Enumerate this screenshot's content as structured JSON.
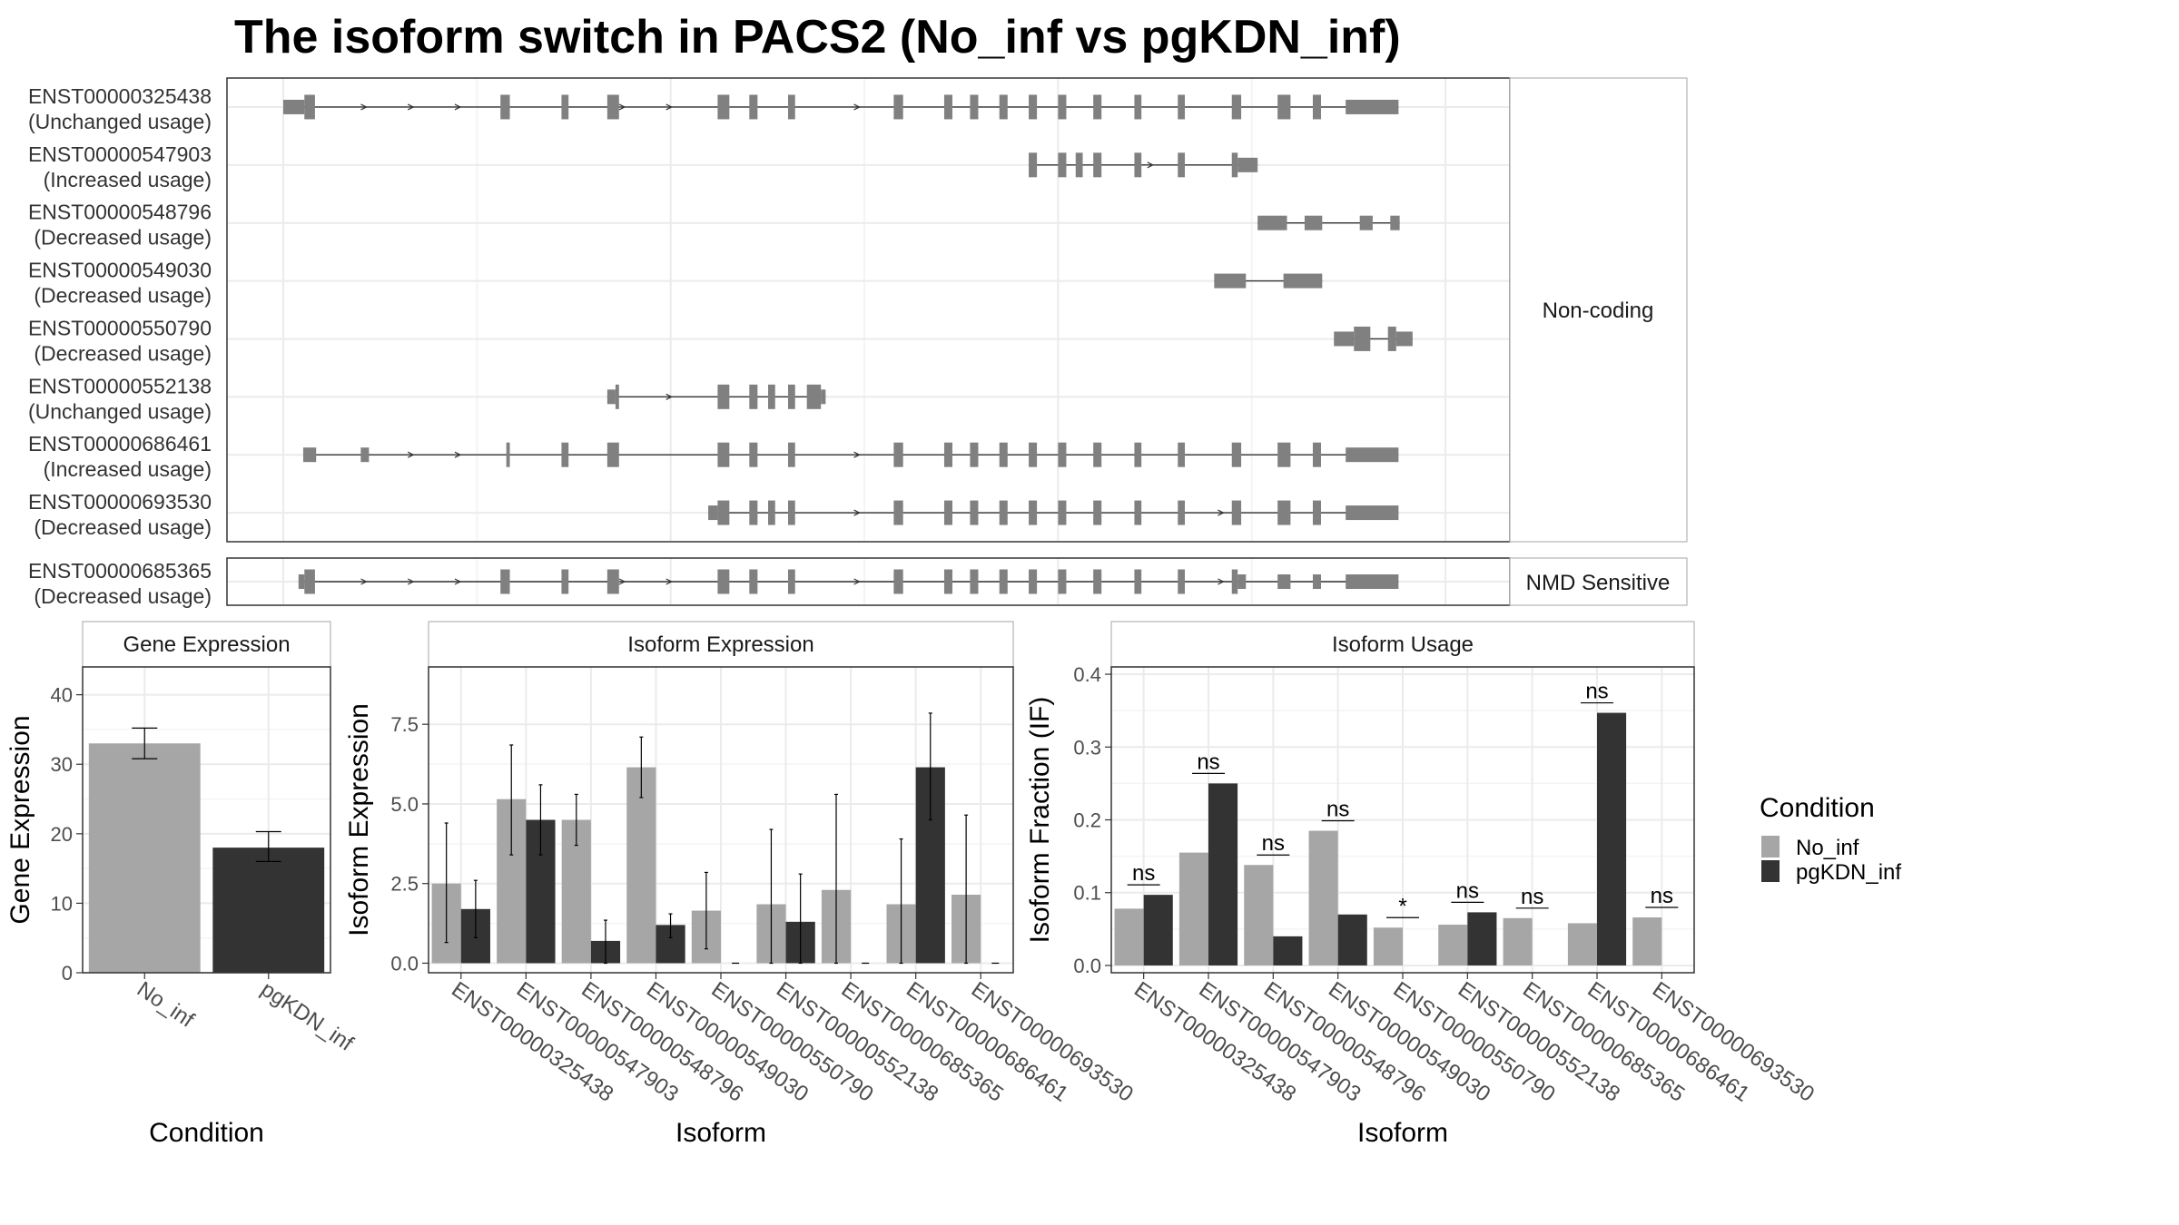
{
  "title": "The isoform switch in PACS2 (No_inf vs pgKDN_inf)",
  "colors": {
    "No_inf": "#a6a6a6",
    "pgKDN_inf": "#333333",
    "exon": "#808080",
    "grid": "#ebebeb",
    "panel_border": "#333333"
  },
  "chart_data": [
    {
      "type": "gene-structure",
      "panel": "Non-coding",
      "genomic_range": [
        0,
        1000
      ],
      "transcripts": [
        {
          "id": "ENST00000325438",
          "status": "(Unchanged usage)",
          "exons": [
            [
              0,
              18,
              "u"
            ],
            [
              18,
              27,
              "c"
            ],
            [
              185,
              193,
              "c"
            ],
            [
              237,
              243,
              "c"
            ],
            [
              276,
              286,
              "c"
            ],
            [
              370,
              380,
              "c"
            ],
            [
              397,
              404,
              "c"
            ],
            [
              430,
              436,
              "c"
            ],
            [
              520,
              528,
              "c"
            ],
            [
              563,
              570,
              "c"
            ],
            [
              585,
              592,
              "c"
            ],
            [
              610,
              617,
              "c"
            ],
            [
              635,
              642,
              "c"
            ],
            [
              660,
              667,
              "c"
            ],
            [
              690,
              697,
              "c"
            ],
            [
              725,
              731,
              "c"
            ],
            [
              762,
              768,
              "c"
            ],
            [
              808,
              816,
              "c"
            ],
            [
              847,
              858,
              "c"
            ],
            [
              877,
              884,
              "c"
            ],
            [
              905,
              913,
              "u"
            ],
            [
              913,
              950,
              "u"
            ]
          ],
          "arrows": [
            70,
            110,
            150,
            290,
            330,
            490
          ]
        },
        {
          "id": "ENST00000547903",
          "status": "(Increased usage)",
          "exons": [
            [
              635,
              642,
              "c"
            ],
            [
              660,
              667,
              "c"
            ],
            [
              675,
              681,
              "c"
            ],
            [
              690,
              697,
              "c"
            ],
            [
              725,
              731,
              "c"
            ],
            [
              762,
              768,
              "c"
            ],
            [
              808,
              813,
              "c"
            ],
            [
              813,
              830,
              "u"
            ]
          ],
          "arrows": [
            740
          ]
        },
        {
          "id": "ENST00000548796",
          "status": "(Decreased usage)",
          "exons": [
            [
              830,
              855,
              "u"
            ],
            [
              870,
              885,
              "u"
            ],
            [
              917,
              928,
              "u"
            ],
            [
              943,
              951,
              "u"
            ]
          ],
          "arrows": []
        },
        {
          "id": "ENST00000549030",
          "status": "(Decreased usage)",
          "exons": [
            [
              793,
              820,
              "u"
            ],
            [
              852,
              885,
              "u"
            ]
          ],
          "arrows": []
        },
        {
          "id": "ENST00000550790",
          "status": "(Decreased usage)",
          "exons": [
            [
              895,
              912,
              "u"
            ],
            [
              912,
              926,
              "c"
            ],
            [
              941,
              948,
              "c"
            ],
            [
              948,
              962,
              "u"
            ]
          ],
          "arrows": []
        },
        {
          "id": "ENST00000552138",
          "status": "(Unchanged usage)",
          "exons": [
            [
              276,
              283,
              "u"
            ],
            [
              283,
              286,
              "c"
            ],
            [
              370,
              380,
              "c"
            ],
            [
              397,
              404,
              "c"
            ],
            [
              413,
              419,
              "c"
            ],
            [
              430,
              436,
              "c"
            ],
            [
              446,
              458,
              "c"
            ],
            [
              458,
              462,
              "u"
            ]
          ],
          "arrows": [
            330
          ]
        },
        {
          "id": "ENST00000686461",
          "status": "(Increased usage)",
          "exons": [
            [
              17,
              28,
              "u"
            ],
            [
              66,
              73,
              "u"
            ],
            [
              190,
              193,
              "c"
            ],
            [
              237,
              243,
              "c"
            ],
            [
              276,
              286,
              "c"
            ],
            [
              370,
              380,
              "c"
            ],
            [
              397,
              404,
              "c"
            ],
            [
              430,
              436,
              "c"
            ],
            [
              520,
              528,
              "c"
            ],
            [
              563,
              570,
              "c"
            ],
            [
              585,
              592,
              "c"
            ],
            [
              610,
              617,
              "c"
            ],
            [
              635,
              642,
              "c"
            ],
            [
              660,
              667,
              "c"
            ],
            [
              690,
              697,
              "c"
            ],
            [
              725,
              731,
              "c"
            ],
            [
              762,
              768,
              "c"
            ],
            [
              808,
              816,
              "c"
            ],
            [
              847,
              858,
              "c"
            ],
            [
              877,
              884,
              "c"
            ],
            [
              905,
              913,
              "u"
            ],
            [
              913,
              950,
              "u"
            ]
          ],
          "arrows": [
            110,
            150,
            490
          ]
        },
        {
          "id": "ENST00000693530",
          "status": "(Decreased usage)",
          "exons": [
            [
              362,
              370,
              "u"
            ],
            [
              370,
              380,
              "c"
            ],
            [
              397,
              404,
              "c"
            ],
            [
              413,
              419,
              "c"
            ],
            [
              430,
              436,
              "c"
            ],
            [
              520,
              528,
              "c"
            ],
            [
              563,
              570,
              "c"
            ],
            [
              585,
              592,
              "c"
            ],
            [
              610,
              617,
              "c"
            ],
            [
              635,
              642,
              "c"
            ],
            [
              660,
              667,
              "c"
            ],
            [
              690,
              697,
              "c"
            ],
            [
              725,
              731,
              "c"
            ],
            [
              762,
              768,
              "c"
            ],
            [
              808,
              816,
              "c"
            ],
            [
              847,
              858,
              "c"
            ],
            [
              877,
              884,
              "c"
            ],
            [
              905,
              913,
              "u"
            ],
            [
              913,
              950,
              "u"
            ]
          ],
          "arrows": [
            490,
            800
          ]
        }
      ]
    },
    {
      "type": "gene-structure",
      "panel": "NMD Sensitive",
      "genomic_range": [
        0,
        1000
      ],
      "transcripts": [
        {
          "id": "ENST00000685365",
          "status": "(Decreased usage)",
          "exons": [
            [
              13,
              18,
              "u"
            ],
            [
              18,
              27,
              "c"
            ],
            [
              185,
              193,
              "c"
            ],
            [
              237,
              243,
              "c"
            ],
            [
              276,
              286,
              "c"
            ],
            [
              370,
              380,
              "c"
            ],
            [
              397,
              404,
              "c"
            ],
            [
              430,
              436,
              "c"
            ],
            [
              520,
              528,
              "c"
            ],
            [
              563,
              570,
              "c"
            ],
            [
              585,
              592,
              "c"
            ],
            [
              610,
              617,
              "c"
            ],
            [
              635,
              642,
              "c"
            ],
            [
              660,
              667,
              "c"
            ],
            [
              690,
              697,
              "c"
            ],
            [
              725,
              731,
              "c"
            ],
            [
              762,
              768,
              "c"
            ],
            [
              808,
              813,
              "c"
            ],
            [
              813,
              820,
              "u"
            ],
            [
              847,
              858,
              "u"
            ],
            [
              877,
              884,
              "u"
            ],
            [
              905,
              950,
              "u"
            ]
          ],
          "arrows": [
            70,
            110,
            150,
            290,
            330,
            490,
            800
          ]
        }
      ]
    },
    {
      "type": "bar",
      "title": "Gene Expression",
      "categories": [
        "No_inf",
        "pgKDN_inf"
      ],
      "values": [
        33,
        18
      ],
      "errors": [
        [
          30.8,
          35.2
        ],
        [
          16.0,
          20.3
        ]
      ],
      "xlabel": "Condition",
      "ylabel": "Gene Expression",
      "ylim": [
        0,
        44
      ],
      "yticks": [
        "0",
        "10",
        "20",
        "30",
        "40"
      ]
    },
    {
      "type": "bar",
      "title": "Isoform Expression",
      "categories": [
        "ENST00000325438",
        "ENST00000547903",
        "ENST00000548796",
        "ENST00000549030",
        "ENST00000550790",
        "ENST00000552138",
        "ENST00000685365",
        "ENST00000686461",
        "ENST00000693530"
      ],
      "series": [
        {
          "name": "No_inf",
          "values": [
            2.5,
            5.15,
            4.5,
            6.15,
            1.65,
            1.85,
            2.3,
            1.85,
            2.15
          ],
          "errors": [
            [
              0.65,
              4.4
            ],
            [
              3.4,
              6.85
            ],
            [
              3.7,
              5.3
            ],
            [
              5.2,
              7.1
            ],
            [
              0.45,
              2.85
            ],
            [
              0.0,
              4.2
            ],
            [
              0.0,
              5.3
            ],
            [
              0.0,
              3.9
            ],
            [
              0.0,
              4.65
            ]
          ]
        },
        {
          "name": "pgKDN_inf",
          "values": [
            1.7,
            4.5,
            0.7,
            1.2,
            0.0,
            1.3,
            0.0,
            6.15,
            0.0
          ],
          "errors": [
            [
              0.8,
              2.6
            ],
            [
              3.4,
              5.6
            ],
            [
              0.0,
              1.35
            ],
            [
              0.8,
              1.55
            ],
            null,
            [
              0.0,
              2.8
            ],
            null,
            [
              4.5,
              7.85
            ],
            null
          ]
        }
      ],
      "xlabel": "Isoform",
      "ylabel": "Isoform Expression",
      "ylim": [
        -0.3,
        9.3
      ],
      "yticks": [
        "0.0",
        "2.5",
        "5.0",
        "7.5"
      ]
    },
    {
      "type": "bar",
      "title": "Isoform Usage",
      "categories": [
        "ENST00000325438",
        "ENST00000547903",
        "ENST00000548796",
        "ENST00000549030",
        "ENST00000550790",
        "ENST00000552138",
        "ENST00000685365",
        "ENST00000686461",
        "ENST00000693530"
      ],
      "series": [
        {
          "name": "No_inf",
          "values": [
            0.078,
            0.155,
            0.138,
            0.185,
            0.052,
            0.056,
            0.065,
            0.058,
            0.066
          ]
        },
        {
          "name": "pgKDN_inf",
          "values": [
            0.097,
            0.25,
            0.04,
            0.07,
            0.0,
            0.073,
            0.0,
            0.347,
            0.0
          ]
        }
      ],
      "annotations": [
        "ns",
        "ns",
        "ns",
        "ns",
        "*",
        "ns",
        "ns",
        "ns",
        "ns"
      ],
      "xlabel": "Isoform",
      "ylabel": "Isoform Fraction (IF)",
      "ylim": [
        -0.01,
        0.41
      ],
      "yticks": [
        "0.0",
        "0.1",
        "0.2",
        "0.3",
        "0.4"
      ]
    }
  ],
  "legend": {
    "title": "Condition",
    "items": [
      {
        "label": "No_inf",
        "color": "#a6a6a6"
      },
      {
        "label": "pgKDN_inf",
        "color": "#333333"
      }
    ]
  }
}
